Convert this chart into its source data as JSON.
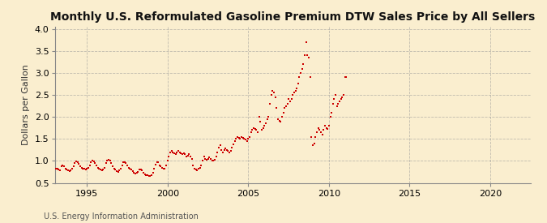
{
  "title": "Monthly U.S. Reformulated Gasoline Premium DTW Sales Price by All Sellers",
  "ylabel": "Dollars per Gallon",
  "source": "U.S. Energy Information Administration",
  "xlim": [
    1993.0,
    2022.5
  ],
  "ylim": [
    0.5,
    4.05
  ],
  "yticks": [
    0.5,
    1.0,
    1.5,
    2.0,
    2.5,
    3.0,
    3.5,
    4.0
  ],
  "xticks": [
    1995,
    2000,
    2005,
    2010,
    2015,
    2020
  ],
  "bg_color": "#faeecf",
  "marker_color": "#cc0000",
  "grid_color": "#999999",
  "title_fontsize": 10.0,
  "data": [
    [
      1993.0,
      0.85
    ],
    [
      1993.08,
      0.83
    ],
    [
      1993.17,
      0.82
    ],
    [
      1993.25,
      0.8
    ],
    [
      1993.33,
      0.79
    ],
    [
      1993.42,
      0.88
    ],
    [
      1993.5,
      0.9
    ],
    [
      1993.58,
      0.87
    ],
    [
      1993.67,
      0.82
    ],
    [
      1993.75,
      0.8
    ],
    [
      1993.83,
      0.78
    ],
    [
      1993.92,
      0.77
    ],
    [
      1994.0,
      0.79
    ],
    [
      1994.08,
      0.83
    ],
    [
      1994.17,
      0.88
    ],
    [
      1994.25,
      0.95
    ],
    [
      1994.33,
      0.98
    ],
    [
      1994.42,
      0.97
    ],
    [
      1994.5,
      0.93
    ],
    [
      1994.58,
      0.88
    ],
    [
      1994.67,
      0.85
    ],
    [
      1994.75,
      0.83
    ],
    [
      1994.83,
      0.82
    ],
    [
      1994.92,
      0.8
    ],
    [
      1995.0,
      0.82
    ],
    [
      1995.08,
      0.85
    ],
    [
      1995.17,
      0.9
    ],
    [
      1995.25,
      0.97
    ],
    [
      1995.33,
      1.0
    ],
    [
      1995.42,
      0.98
    ],
    [
      1995.5,
      0.95
    ],
    [
      1995.58,
      0.9
    ],
    [
      1995.67,
      0.85
    ],
    [
      1995.75,
      0.83
    ],
    [
      1995.83,
      0.8
    ],
    [
      1995.92,
      0.78
    ],
    [
      1996.0,
      0.8
    ],
    [
      1996.08,
      0.85
    ],
    [
      1996.17,
      0.95
    ],
    [
      1996.25,
      1.0
    ],
    [
      1996.33,
      1.02
    ],
    [
      1996.42,
      1.0
    ],
    [
      1996.5,
      0.95
    ],
    [
      1996.58,
      0.88
    ],
    [
      1996.67,
      0.83
    ],
    [
      1996.75,
      0.8
    ],
    [
      1996.83,
      0.77
    ],
    [
      1996.92,
      0.75
    ],
    [
      1997.0,
      0.78
    ],
    [
      1997.08,
      0.82
    ],
    [
      1997.17,
      0.9
    ],
    [
      1997.25,
      0.97
    ],
    [
      1997.33,
      0.97
    ],
    [
      1997.42,
      0.95
    ],
    [
      1997.5,
      0.9
    ],
    [
      1997.58,
      0.85
    ],
    [
      1997.67,
      0.82
    ],
    [
      1997.75,
      0.8
    ],
    [
      1997.83,
      0.77
    ],
    [
      1997.92,
      0.73
    ],
    [
      1998.0,
      0.72
    ],
    [
      1998.08,
      0.73
    ],
    [
      1998.17,
      0.75
    ],
    [
      1998.25,
      0.8
    ],
    [
      1998.33,
      0.8
    ],
    [
      1998.42,
      0.78
    ],
    [
      1998.5,
      0.73
    ],
    [
      1998.58,
      0.7
    ],
    [
      1998.67,
      0.68
    ],
    [
      1998.75,
      0.67
    ],
    [
      1998.83,
      0.65
    ],
    [
      1998.92,
      0.65
    ],
    [
      1999.0,
      0.68
    ],
    [
      1999.08,
      0.73
    ],
    [
      1999.17,
      0.83
    ],
    [
      1999.25,
      0.92
    ],
    [
      1999.33,
      0.97
    ],
    [
      1999.42,
      0.97
    ],
    [
      1999.5,
      0.9
    ],
    [
      1999.58,
      0.87
    ],
    [
      1999.67,
      0.85
    ],
    [
      1999.75,
      0.83
    ],
    [
      1999.83,
      0.82
    ],
    [
      1999.92,
      0.9
    ],
    [
      2000.0,
      1.0
    ],
    [
      2000.08,
      1.1
    ],
    [
      2000.17,
      1.2
    ],
    [
      2000.25,
      1.22
    ],
    [
      2000.33,
      1.2
    ],
    [
      2000.42,
      1.18
    ],
    [
      2000.5,
      1.15
    ],
    [
      2000.58,
      1.2
    ],
    [
      2000.67,
      1.22
    ],
    [
      2000.75,
      1.2
    ],
    [
      2000.83,
      1.18
    ],
    [
      2000.92,
      1.15
    ],
    [
      2001.0,
      1.18
    ],
    [
      2001.08,
      1.15
    ],
    [
      2001.17,
      1.1
    ],
    [
      2001.25,
      1.12
    ],
    [
      2001.33,
      1.15
    ],
    [
      2001.42,
      1.1
    ],
    [
      2001.5,
      1.05
    ],
    [
      2001.58,
      0.9
    ],
    [
      2001.67,
      0.83
    ],
    [
      2001.75,
      0.8
    ],
    [
      2001.83,
      0.78
    ],
    [
      2001.92,
      0.82
    ],
    [
      2002.0,
      0.85
    ],
    [
      2002.08,
      0.9
    ],
    [
      2002.17,
      1.0
    ],
    [
      2002.25,
      1.1
    ],
    [
      2002.33,
      1.05
    ],
    [
      2002.42,
      1.02
    ],
    [
      2002.5,
      1.05
    ],
    [
      2002.58,
      1.08
    ],
    [
      2002.67,
      1.05
    ],
    [
      2002.75,
      1.0
    ],
    [
      2002.83,
      1.0
    ],
    [
      2002.92,
      1.02
    ],
    [
      2003.0,
      1.1
    ],
    [
      2003.08,
      1.2
    ],
    [
      2003.17,
      1.3
    ],
    [
      2003.25,
      1.35
    ],
    [
      2003.33,
      1.25
    ],
    [
      2003.42,
      1.2
    ],
    [
      2003.5,
      1.25
    ],
    [
      2003.58,
      1.28
    ],
    [
      2003.67,
      1.25
    ],
    [
      2003.75,
      1.22
    ],
    [
      2003.83,
      1.2
    ],
    [
      2003.92,
      1.22
    ],
    [
      2004.0,
      1.3
    ],
    [
      2004.08,
      1.38
    ],
    [
      2004.17,
      1.45
    ],
    [
      2004.25,
      1.5
    ],
    [
      2004.33,
      1.55
    ],
    [
      2004.42,
      1.52
    ],
    [
      2004.5,
      1.5
    ],
    [
      2004.58,
      1.55
    ],
    [
      2004.67,
      1.52
    ],
    [
      2004.75,
      1.5
    ],
    [
      2004.83,
      1.48
    ],
    [
      2004.92,
      1.45
    ],
    [
      2005.0,
      1.5
    ],
    [
      2005.08,
      1.55
    ],
    [
      2005.17,
      1.65
    ],
    [
      2005.25,
      1.7
    ],
    [
      2005.33,
      1.75
    ],
    [
      2005.42,
      1.72
    ],
    [
      2005.5,
      1.7
    ],
    [
      2005.58,
      1.65
    ],
    [
      2005.67,
      2.0
    ],
    [
      2005.75,
      1.9
    ],
    [
      2005.83,
      1.7
    ],
    [
      2005.92,
      1.75
    ],
    [
      2006.0,
      1.8
    ],
    [
      2006.08,
      1.85
    ],
    [
      2006.17,
      1.95
    ],
    [
      2006.25,
      2.0
    ],
    [
      2006.33,
      2.3
    ],
    [
      2006.42,
      2.5
    ],
    [
      2006.5,
      2.6
    ],
    [
      2006.58,
      2.55
    ],
    [
      2006.67,
      2.45
    ],
    [
      2006.75,
      2.2
    ],
    [
      2006.83,
      1.95
    ],
    [
      2006.92,
      1.92
    ],
    [
      2007.0,
      1.9
    ],
    [
      2007.08,
      2.0
    ],
    [
      2007.17,
      2.1
    ],
    [
      2007.25,
      2.2
    ],
    [
      2007.33,
      2.25
    ],
    [
      2007.42,
      2.3
    ],
    [
      2007.5,
      2.4
    ],
    [
      2007.58,
      2.35
    ],
    [
      2007.67,
      2.4
    ],
    [
      2007.75,
      2.5
    ],
    [
      2007.83,
      2.55
    ],
    [
      2007.92,
      2.6
    ],
    [
      2008.0,
      2.65
    ],
    [
      2008.08,
      2.75
    ],
    [
      2008.17,
      2.9
    ],
    [
      2008.25,
      3.0
    ],
    [
      2008.33,
      3.1
    ],
    [
      2008.42,
      3.2
    ],
    [
      2008.5,
      3.4
    ],
    [
      2008.58,
      3.7
    ],
    [
      2008.67,
      3.4
    ],
    [
      2008.75,
      3.35
    ],
    [
      2008.83,
      2.9
    ],
    [
      2008.92,
      1.55
    ],
    [
      2009.0,
      1.35
    ],
    [
      2009.08,
      1.4
    ],
    [
      2009.17,
      1.55
    ],
    [
      2009.25,
      1.65
    ],
    [
      2009.33,
      1.75
    ],
    [
      2009.42,
      1.7
    ],
    [
      2009.5,
      1.65
    ],
    [
      2009.58,
      1.6
    ],
    [
      2009.67,
      1.7
    ],
    [
      2009.75,
      1.8
    ],
    [
      2009.83,
      1.75
    ],
    [
      2009.92,
      1.72
    ],
    [
      2010.0,
      1.8
    ],
    [
      2010.08,
      2.0
    ],
    [
      2010.17,
      2.1
    ],
    [
      2010.25,
      2.3
    ],
    [
      2010.33,
      2.4
    ],
    [
      2010.42,
      2.5
    ],
    [
      2010.5,
      2.25
    ],
    [
      2010.58,
      2.3
    ],
    [
      2010.67,
      2.35
    ],
    [
      2010.75,
      2.4
    ],
    [
      2010.83,
      2.45
    ],
    [
      2010.92,
      2.5
    ],
    [
      2011.0,
      2.9
    ],
    [
      2011.08,
      2.9
    ]
  ]
}
